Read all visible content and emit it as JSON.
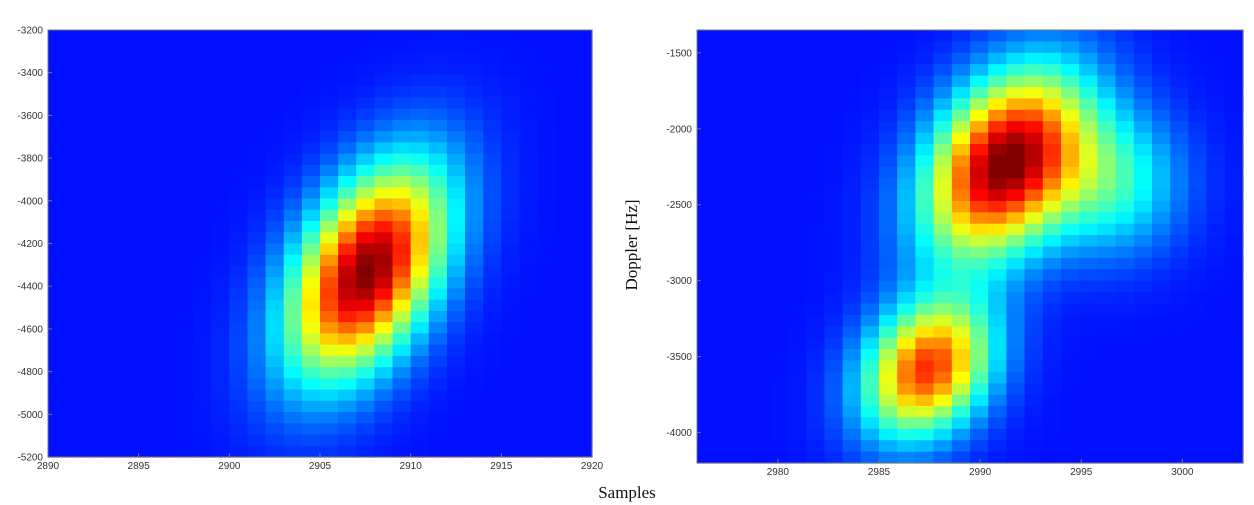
{
  "shared_labels": {
    "ylabel": "Doppler [Hz]",
    "xlabel": "Samples"
  },
  "chart_data": [
    {
      "type": "heatmap",
      "title": "",
      "xlim": [
        2890,
        2920
      ],
      "ylim": [
        -5200,
        -3200
      ],
      "xticks": [
        2890,
        2895,
        2900,
        2905,
        2910,
        2915,
        2920
      ],
      "yticks": [
        -3200,
        -3400,
        -3600,
        -3800,
        -4000,
        -4200,
        -4400,
        -4600,
        -4800,
        -5000,
        -5200
      ],
      "colormap": "jet",
      "background_color": "#1f3aa8",
      "blobs": [
        {
          "x": 2907.6,
          "y": -4330,
          "sx": 3.0,
          "sy": 340,
          "rho": 0.45,
          "peak": 1.0
        }
      ]
    },
    {
      "type": "heatmap",
      "title": "",
      "xlim": [
        2976,
        3003
      ],
      "ylim": [
        -4200,
        -1350
      ],
      "xticks": [
        2980,
        2985,
        2990,
        2995,
        3000
      ],
      "yticks": [
        -1500,
        -2000,
        -2500,
        -3000,
        -3500,
        -4000
      ],
      "colormap": "jet",
      "background_color": "#1f3aa8",
      "blobs": [
        {
          "x": 2991.2,
          "y": -2230,
          "sx": 2.7,
          "sy": 420,
          "rho": 0.35,
          "peak": 1.0
        },
        {
          "x": 2987.4,
          "y": -3580,
          "sx": 2.2,
          "sy": 310,
          "rho": 0.25,
          "peak": 0.8
        },
        {
          "x": 2996.5,
          "y": -2350,
          "sx": 2.4,
          "sy": 330,
          "rho": 0.0,
          "peak": 0.32
        }
      ]
    }
  ]
}
